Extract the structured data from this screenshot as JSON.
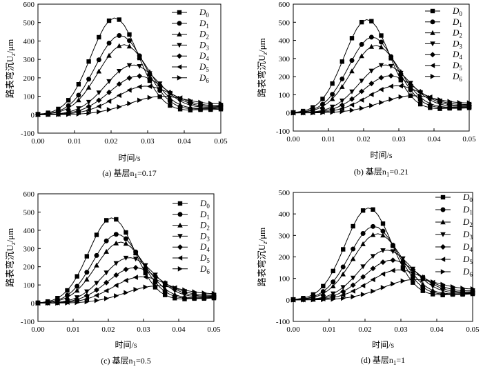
{
  "figure": {
    "caption_prefix": "基层",
    "legend_labels": [
      "D0",
      "D1",
      "D2",
      "D3",
      "D4",
      "D5",
      "D6"
    ],
    "legend_markers": [
      "square",
      "circle",
      "triangle-up",
      "triangle-down",
      "diamond",
      "triangle-left",
      "triangle-right"
    ]
  },
  "chart_data": [
    {
      "type": "line",
      "caption": "(a) 基层n",
      "subscript": "1",
      "caption_value": "=0.17",
      "xlabel": "时间/s",
      "ylabel": "路表弯沉U",
      "ylabel_sub": "z",
      "ylabel_unit": "/μm",
      "xlim": [
        0,
        0.05
      ],
      "ylim": [
        -100,
        600
      ],
      "xticks": [
        "0.00",
        "0.01",
        "0.02",
        "0.03",
        "0.04",
        "0.05"
      ],
      "yticks": [
        "-100",
        "0",
        "100",
        "200",
        "300",
        "400",
        "500",
        "600"
      ],
      "series": [
        {
          "name": "D0",
          "peak": 525,
          "t0": 0.021,
          "sigma": 0.0065,
          "end": 30
        },
        {
          "name": "D1",
          "peak": 430,
          "t0": 0.0225,
          "sigma": 0.0068,
          "end": 35
        },
        {
          "name": "D2",
          "peak": 380,
          "t0": 0.0235,
          "sigma": 0.007,
          "end": 38
        },
        {
          "name": "D3",
          "peak": 270,
          "t0": 0.026,
          "sigma": 0.0073,
          "end": 42
        },
        {
          "name": "D4",
          "peak": 210,
          "t0": 0.0275,
          "sigma": 0.0077,
          "end": 44
        },
        {
          "name": "D5",
          "peak": 155,
          "t0": 0.0295,
          "sigma": 0.0082,
          "end": 46
        },
        {
          "name": "D6",
          "peak": 100,
          "t0": 0.034,
          "sigma": 0.009,
          "end": 50
        }
      ]
    },
    {
      "type": "line",
      "caption": "(b) 基层n",
      "subscript": "1",
      "caption_value": "=0.21",
      "xlabel": "时间/s",
      "ylabel": "路表弯沉U",
      "ylabel_sub": "z",
      "ylabel_unit": "/μm",
      "xlim": [
        0,
        0.05
      ],
      "ylim": [
        -100,
        600
      ],
      "xticks": [
        "0.00",
        "0.01",
        "0.02",
        "0.03",
        "0.04",
        "0.05"
      ],
      "yticks": [
        "-100",
        "0",
        "100",
        "200",
        "300",
        "400",
        "500",
        "600"
      ],
      "series": [
        {
          "name": "D0",
          "peak": 515,
          "t0": 0.021,
          "sigma": 0.0065,
          "end": 28
        },
        {
          "name": "D1",
          "peak": 418,
          "t0": 0.0225,
          "sigma": 0.0068,
          "end": 32
        },
        {
          "name": "D2",
          "peak": 372,
          "t0": 0.0235,
          "sigma": 0.007,
          "end": 35
        },
        {
          "name": "D3",
          "peak": 265,
          "t0": 0.026,
          "sigma": 0.0073,
          "end": 38
        },
        {
          "name": "D4",
          "peak": 205,
          "t0": 0.0275,
          "sigma": 0.0077,
          "end": 40
        },
        {
          "name": "D5",
          "peak": 150,
          "t0": 0.0295,
          "sigma": 0.0082,
          "end": 42
        },
        {
          "name": "D6",
          "peak": 95,
          "t0": 0.034,
          "sigma": 0.009,
          "end": 45
        }
      ]
    },
    {
      "type": "line",
      "caption": "(c) 基层n",
      "subscript": "1",
      "caption_value": "=0.5",
      "xlabel": "时间/s",
      "ylabel": "路表弯沉U",
      "ylabel_sub": "z",
      "ylabel_unit": "/μm",
      "xlim": [
        0,
        0.05
      ],
      "ylim": [
        -100,
        600
      ],
      "xticks": [
        "0.00",
        "0.01",
        "0.02",
        "0.03",
        "0.04",
        "0.05"
      ],
      "yticks": [
        "-100",
        "0",
        "100",
        "200",
        "300",
        "400",
        "500",
        "600"
      ],
      "series": [
        {
          "name": "D0",
          "peak": 468,
          "t0": 0.021,
          "sigma": 0.0065,
          "end": 28
        },
        {
          "name": "D1",
          "peak": 378,
          "t0": 0.0225,
          "sigma": 0.0068,
          "end": 30
        },
        {
          "name": "D2",
          "peak": 335,
          "t0": 0.0235,
          "sigma": 0.007,
          "end": 33
        },
        {
          "name": "D3",
          "peak": 250,
          "t0": 0.026,
          "sigma": 0.0073,
          "end": 36
        },
        {
          "name": "D4",
          "peak": 195,
          "t0": 0.0275,
          "sigma": 0.0077,
          "end": 38
        },
        {
          "name": "D5",
          "peak": 145,
          "t0": 0.0295,
          "sigma": 0.0082,
          "end": 40
        },
        {
          "name": "D6",
          "peak": 95,
          "t0": 0.034,
          "sigma": 0.009,
          "end": 42
        }
      ]
    },
    {
      "type": "line",
      "caption": "(d) 基层n",
      "subscript": "1",
      "caption_value": "=1",
      "xlabel": "时间/s",
      "ylabel": "路表弯沉U",
      "ylabel_sub": "z",
      "ylabel_unit": "/μm",
      "xlim": [
        0,
        0.05
      ],
      "ylim": [
        -100,
        500
      ],
      "xticks": [
        "0.00",
        "0.01",
        "0.02",
        "0.03",
        "0.04",
        "0.05"
      ],
      "yticks": [
        "-100",
        "0",
        "100",
        "200",
        "300",
        "400",
        "500"
      ],
      "series": [
        {
          "name": "D0",
          "peak": 428,
          "t0": 0.021,
          "sigma": 0.0065,
          "end": 28
        },
        {
          "name": "D1",
          "peak": 342,
          "t0": 0.0225,
          "sigma": 0.0068,
          "end": 30
        },
        {
          "name": "D2",
          "peak": 308,
          "t0": 0.0235,
          "sigma": 0.007,
          "end": 32
        },
        {
          "name": "D3",
          "peak": 232,
          "t0": 0.026,
          "sigma": 0.0073,
          "end": 34
        },
        {
          "name": "D4",
          "peak": 185,
          "t0": 0.0275,
          "sigma": 0.0077,
          "end": 36
        },
        {
          "name": "D5",
          "peak": 140,
          "t0": 0.0295,
          "sigma": 0.0082,
          "end": 38
        },
        {
          "name": "D6",
          "peak": 95,
          "t0": 0.034,
          "sigma": 0.009,
          "end": 40
        }
      ]
    }
  ]
}
